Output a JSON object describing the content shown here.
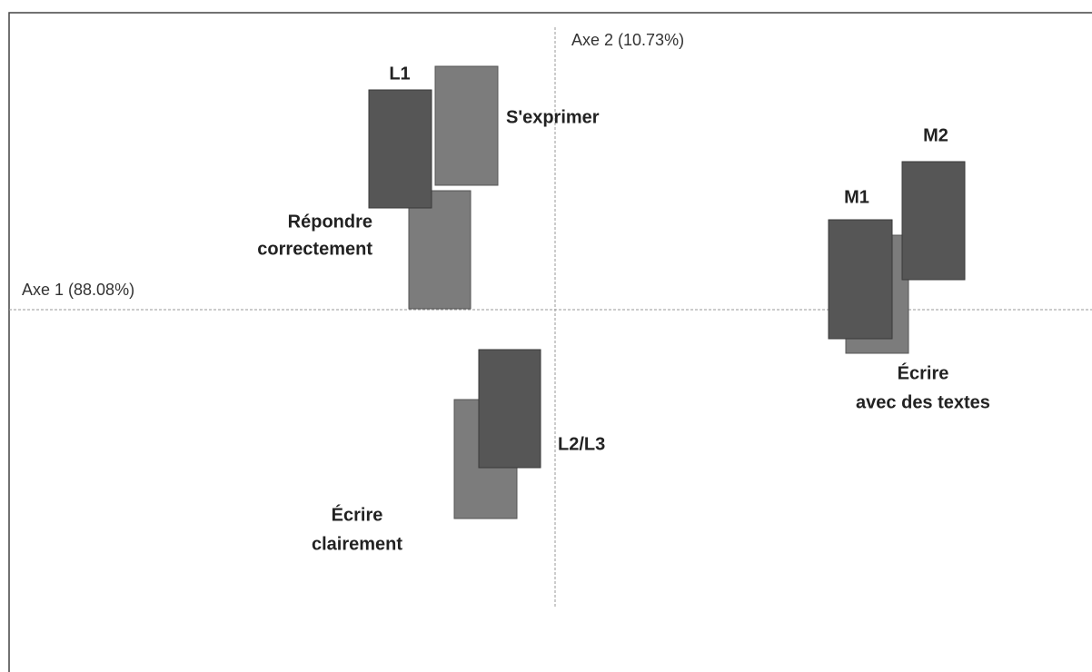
{
  "axes": {
    "axis_1": "Axe 1 (88.08%)",
    "axis_2": "Axe 2 (10.73%)"
  },
  "row_points": [
    {
      "label": "L1"
    },
    {
      "label": "L2/L3"
    },
    {
      "label": "M1"
    },
    {
      "label": "M2"
    }
  ],
  "column_points": [
    {
      "label_lines": [
        "S'exprimer"
      ]
    },
    {
      "label_lines": [
        "Répondre",
        "correctement"
      ]
    },
    {
      "label_lines": [
        "Écrire",
        "clairement"
      ]
    },
    {
      "label_lines": [
        "Écrire",
        "avec des textes"
      ]
    }
  ]
}
